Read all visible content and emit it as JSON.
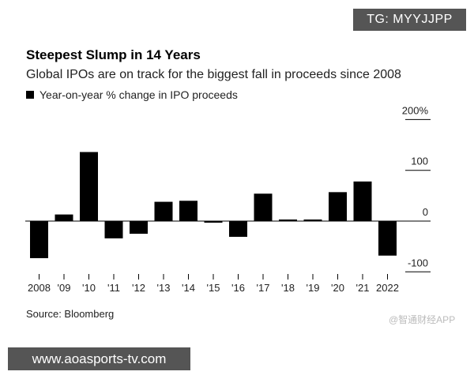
{
  "watermark_top": "TG: MYYJJPP",
  "watermark_bottom": "www.aoasports-tv.com",
  "watermark_app": "@智通财经APP",
  "colors": {
    "bars": "#000000",
    "axis": "#000000",
    "text": "#222222"
  },
  "source": "Source: Bloomberg",
  "chart_data": {
    "type": "bar",
    "title": "Steepest Slump in 14 Years",
    "subtitle": "Global IPOs are on track for the biggest fall in proceeds since 2008",
    "legend": "Year-on-year % change in IPO proceeds",
    "ylabel": "Year-on-year % change in IPO proceeds",
    "xlabel": "",
    "ylim": [
      -100,
      200
    ],
    "yticks": [
      200,
      100,
      0,
      -100
    ],
    "ytick_labels": [
      "200%",
      "100",
      "0",
      "-100"
    ],
    "categories": [
      "2008",
      "'09",
      "'10",
      "'11",
      "'12",
      "'13",
      "'14",
      "'15",
      "'16",
      "'17",
      "'18",
      "'19",
      "'20",
      "'21",
      "2022"
    ],
    "values": [
      -73,
      13,
      136,
      -34,
      -25,
      38,
      40,
      -1,
      -31,
      54,
      3,
      2,
      57,
      78,
      -68
    ]
  }
}
